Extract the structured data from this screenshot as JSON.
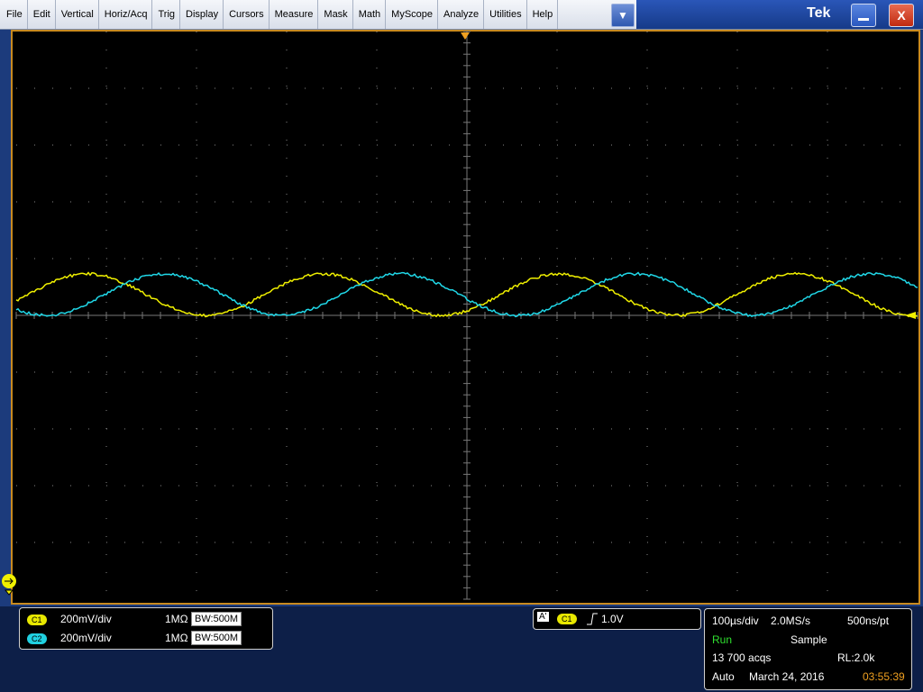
{
  "menu": [
    "File",
    "Edit",
    "Vertical",
    "Horiz/Acq",
    "Trig",
    "Display",
    "Cursors",
    "Measure",
    "Mask",
    "Math",
    "MyScope",
    "Analyze",
    "Utilities",
    "Help"
  ],
  "brand": "Tek",
  "channels": [
    {
      "label": "C1",
      "scale": "200mV/div",
      "impedance": "1MΩ",
      "bandwidth": "BW:500M"
    },
    {
      "label": "C2",
      "scale": "200mV/div",
      "impedance": "1MΩ",
      "bandwidth": "BW:500M"
    }
  ],
  "trigger": {
    "source": "A'",
    "channel": "C1",
    "level": "1.0V"
  },
  "acquisition": {
    "timebase": "100µs/div",
    "sample_rate": "2.0MS/s",
    "resolution": "500ns/pt",
    "state": "Run",
    "mode": "Sample",
    "acqs": "13 700 acqs",
    "record_length": "RL:2.0k",
    "trigger_mode": "Auto",
    "date": "March 24, 2016",
    "time": "03:55:39"
  }
}
